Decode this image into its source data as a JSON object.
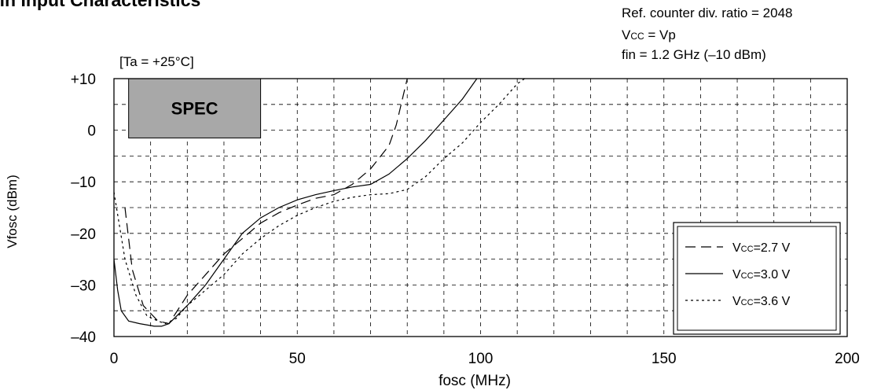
{
  "page_title": "fin Input Characteristics",
  "conditions": {
    "line1": "Ref. counter div. ratio = 2048",
    "line2_main": "V",
    "line2_sub": "CC",
    "line2_rest": " = Vp",
    "line3": "fin = 1.2 GHz (–10 dBm)"
  },
  "temperature": "[Ta = +25°C]",
  "spec_label": "SPEC",
  "legend": [
    {
      "main": "V",
      "sub": "CC",
      "rest": "=2.7 V",
      "dash": "dash"
    },
    {
      "main": "V",
      "sub": "CC",
      "rest": "=3.0 V",
      "dash": "solid"
    },
    {
      "main": "V",
      "sub": "CC",
      "rest": "=3.6 V",
      "dash": "dot"
    }
  ],
  "chart_data": {
    "type": "line",
    "xlabel": "fosc (MHz)",
    "ylabel": "Vfosc (dBm)",
    "xlim": [
      0,
      200
    ],
    "ylim": [
      -40,
      10
    ],
    "x_ticks": [
      0,
      50,
      100,
      150,
      200
    ],
    "x_tick_labels": [
      "0",
      "50",
      "100",
      "150",
      "200"
    ],
    "y_ticks": [
      10,
      0,
      -10,
      -20,
      -30,
      -40
    ],
    "y_tick_labels": [
      "+10",
      "0",
      "–10",
      "–20",
      "–30",
      "–40"
    ],
    "grid": true,
    "legend_position": "bottom-right",
    "spec_region": {
      "x": [
        4,
        40
      ],
      "y": [
        -1.5,
        10
      ]
    },
    "series": [
      {
        "name": "VCC=2.7 V",
        "dash": "dash",
        "points": [
          [
            3,
            -15
          ],
          [
            5,
            -27
          ],
          [
            8,
            -34
          ],
          [
            12,
            -37
          ],
          [
            15,
            -37.5
          ],
          [
            20,
            -32
          ],
          [
            25,
            -28
          ],
          [
            30,
            -24
          ],
          [
            35,
            -21
          ],
          [
            40,
            -18
          ],
          [
            45,
            -16
          ],
          [
            50,
            -14.5
          ],
          [
            55,
            -13.2
          ],
          [
            60,
            -12.5
          ],
          [
            65,
            -10.5
          ],
          [
            70,
            -7.5
          ],
          [
            75,
            -3
          ],
          [
            77,
            1
          ],
          [
            79,
            7
          ],
          [
            80,
            10
          ]
        ]
      },
      {
        "name": "VCC=3.0 V",
        "dash": "solid",
        "points": [
          [
            0,
            -25
          ],
          [
            1,
            -31
          ],
          [
            2,
            -35
          ],
          [
            4,
            -37
          ],
          [
            7,
            -37.5
          ],
          [
            11,
            -38
          ],
          [
            13,
            -38
          ],
          [
            15,
            -37.5
          ],
          [
            20,
            -34
          ],
          [
            25,
            -30
          ],
          [
            30,
            -25
          ],
          [
            35,
            -20
          ],
          [
            40,
            -17
          ],
          [
            45,
            -15
          ],
          [
            50,
            -13.5
          ],
          [
            55,
            -12.5
          ],
          [
            60,
            -11.7
          ],
          [
            65,
            -11
          ],
          [
            70,
            -10.5
          ],
          [
            75,
            -8.5
          ],
          [
            80,
            -5.5
          ],
          [
            85,
            -2
          ],
          [
            90,
            2
          ],
          [
            95,
            6
          ],
          [
            97,
            8
          ],
          [
            99,
            10
          ]
        ]
      },
      {
        "name": "VCC=3.6 V",
        "dash": "dot",
        "points": [
          [
            0,
            -12
          ],
          [
            3,
            -25
          ],
          [
            6,
            -32
          ],
          [
            9,
            -36
          ],
          [
            12,
            -37
          ],
          [
            14,
            -37.5
          ],
          [
            17,
            -36.5
          ],
          [
            20,
            -34
          ],
          [
            25,
            -31
          ],
          [
            30,
            -28
          ],
          [
            35,
            -24
          ],
          [
            40,
            -21
          ],
          [
            45,
            -18.5
          ],
          [
            50,
            -16.5
          ],
          [
            55,
            -15
          ],
          [
            60,
            -13.8
          ],
          [
            65,
            -13
          ],
          [
            70,
            -12.5
          ],
          [
            75,
            -12.3
          ],
          [
            80,
            -11.5
          ],
          [
            85,
            -9
          ],
          [
            90,
            -5.5
          ],
          [
            95,
            -2.5
          ],
          [
            100,
            1.5
          ],
          [
            105,
            5
          ],
          [
            110,
            9
          ],
          [
            112,
            10
          ]
        ]
      }
    ]
  }
}
